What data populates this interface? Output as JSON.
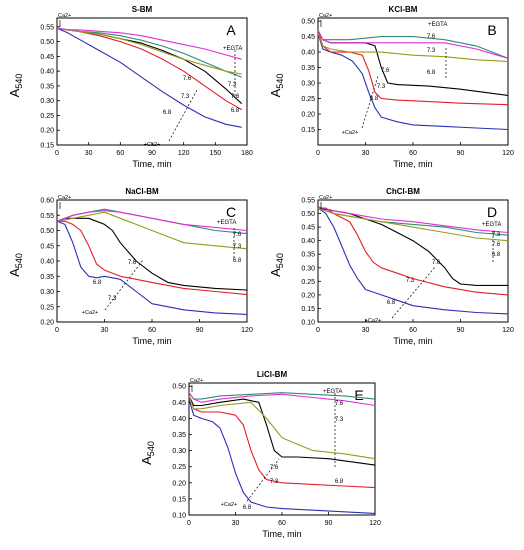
{
  "figure": {
    "colors": {
      "black": "#000000",
      "red": "#e41e26",
      "blue": "#2b2fb8",
      "olive": "#9a9a1e",
      "teal": "#2e8b7a",
      "magenta": "#e22fd6",
      "axis": "#000000"
    }
  },
  "chart_data": [
    {
      "type": "line",
      "panel": "A",
      "title": "S-BM",
      "xlabel": "Time, min",
      "ylabel": "A540",
      "ylabel_base": "A",
      "ylabel_sub": "540",
      "xlim": [
        0,
        180
      ],
      "ylim": [
        0.15,
        0.58
      ],
      "xticks": [
        0,
        30,
        60,
        90,
        120,
        150,
        180
      ],
      "yticks": [
        0.15,
        0.2,
        0.25,
        0.3,
        0.35,
        0.4,
        0.45,
        0.5,
        0.55
      ],
      "annotations": {
        "ca_start": "Ca2+",
        "ca_add": "+Ca2+",
        "egta": "+EGTA",
        "ph_labels": [
          "7.6",
          "7.3",
          "6.8",
          "7.3",
          "7.6",
          "6.8"
        ]
      },
      "series": [
        {
          "color": "blue",
          "x": [
            0,
            10,
            20,
            40,
            60,
            80,
            100,
            120,
            140,
            160,
            175
          ],
          "y": [
            0.545,
            0.53,
            0.51,
            0.47,
            0.43,
            0.38,
            0.33,
            0.285,
            0.245,
            0.22,
            0.21
          ]
        },
        {
          "color": "red",
          "x": [
            0,
            10,
            20,
            40,
            60,
            80,
            100,
            120,
            140,
            160,
            175
          ],
          "y": [
            0.545,
            0.54,
            0.535,
            0.52,
            0.5,
            0.475,
            0.44,
            0.4,
            0.35,
            0.3,
            0.27
          ]
        },
        {
          "color": "black",
          "x": [
            0,
            10,
            20,
            40,
            60,
            80,
            100,
            120,
            140,
            160,
            175
          ],
          "y": [
            0.545,
            0.54,
            0.535,
            0.525,
            0.51,
            0.495,
            0.47,
            0.44,
            0.4,
            0.34,
            0.29
          ]
        },
        {
          "color": "teal",
          "x": [
            0,
            10,
            20,
            40,
            60,
            80,
            100,
            120,
            140,
            160,
            175
          ],
          "y": [
            0.545,
            0.54,
            0.535,
            0.53,
            0.52,
            0.505,
            0.485,
            0.46,
            0.43,
            0.4,
            0.38
          ]
        },
        {
          "color": "olive",
          "x": [
            0,
            10,
            20,
            40,
            60,
            80,
            100,
            120,
            140,
            160,
            175
          ],
          "y": [
            0.545,
            0.54,
            0.535,
            0.525,
            0.51,
            0.49,
            0.465,
            0.44,
            0.42,
            0.4,
            0.39
          ]
        },
        {
          "color": "magenta",
          "x": [
            0,
            10,
            20,
            40,
            60,
            80,
            100,
            120,
            140,
            160,
            175
          ],
          "y": [
            0.545,
            0.54,
            0.54,
            0.535,
            0.53,
            0.52,
            0.505,
            0.49,
            0.475,
            0.455,
            0.44
          ]
        }
      ]
    },
    {
      "type": "line",
      "panel": "B",
      "title": "KCl-BM",
      "xlabel": "Time, min",
      "ylabel": "A540",
      "ylabel_base": "A",
      "ylabel_sub": "540",
      "xlim": [
        0,
        120
      ],
      "ylim": [
        0.1,
        0.51
      ],
      "xticks": [
        0,
        30,
        60,
        90,
        120
      ],
      "yticks": [
        0.15,
        0.2,
        0.25,
        0.3,
        0.35,
        0.4,
        0.45,
        0.5
      ],
      "annotations": {
        "ca_start": "Ca2+",
        "ca_add": "+Ca2+",
        "egta": "+EGTA",
        "ph_labels": [
          "7.6",
          "7.3",
          "6.8",
          "7.6",
          "7.3",
          "6.8"
        ]
      },
      "series": [
        {
          "color": "blue",
          "x": [
            0,
            3,
            8,
            15,
            22,
            28,
            32,
            36,
            40,
            50,
            60,
            80,
            100,
            120
          ],
          "y": [
            0.46,
            0.41,
            0.4,
            0.39,
            0.37,
            0.33,
            0.27,
            0.22,
            0.19,
            0.175,
            0.165,
            0.16,
            0.155,
            0.15
          ]
        },
        {
          "color": "red",
          "x": [
            0,
            3,
            8,
            20,
            28,
            32,
            36,
            40,
            50,
            70,
            90,
            120
          ],
          "y": [
            0.47,
            0.42,
            0.4,
            0.4,
            0.39,
            0.34,
            0.27,
            0.25,
            0.245,
            0.24,
            0.235,
            0.23
          ]
        },
        {
          "color": "black",
          "x": [
            0,
            3,
            8,
            20,
            30,
            36,
            40,
            44,
            50,
            70,
            90,
            120
          ],
          "y": [
            0.47,
            0.44,
            0.43,
            0.43,
            0.43,
            0.42,
            0.35,
            0.3,
            0.295,
            0.29,
            0.28,
            0.26
          ]
        },
        {
          "color": "olive",
          "x": [
            0,
            3,
            8,
            20,
            40,
            60,
            80,
            100,
            120
          ],
          "y": [
            0.46,
            0.42,
            0.41,
            0.4,
            0.4,
            0.39,
            0.385,
            0.375,
            0.37
          ]
        },
        {
          "color": "teal",
          "x": [
            0,
            3,
            8,
            20,
            40,
            60,
            80,
            100,
            120
          ],
          "y": [
            0.47,
            0.44,
            0.44,
            0.44,
            0.45,
            0.45,
            0.44,
            0.42,
            0.38
          ]
        },
        {
          "color": "magenta",
          "x": [
            0,
            3,
            8,
            20,
            40,
            60,
            80,
            100,
            120
          ],
          "y": [
            0.47,
            0.44,
            0.43,
            0.43,
            0.43,
            0.43,
            0.43,
            0.41,
            0.38
          ]
        }
      ]
    },
    {
      "type": "line",
      "panel": "C",
      "title": "NaCl-BM",
      "xlabel": "Time, min",
      "ylabel": "A540",
      "ylabel_base": "A",
      "ylabel_sub": "540",
      "xlim": [
        0,
        120
      ],
      "ylim": [
        0.2,
        0.6
      ],
      "xticks": [
        0,
        30,
        60,
        90,
        120
      ],
      "yticks": [
        0.2,
        0.25,
        0.3,
        0.35,
        0.4,
        0.45,
        0.5,
        0.55,
        0.6
      ],
      "annotations": {
        "ca_start": "Ca2+",
        "ca_add": "+Ca2+",
        "egta": "+EGTA",
        "ph_labels": [
          "6.8",
          "7.3",
          "7.6",
          "7.6",
          "7.3",
          "6.8"
        ]
      },
      "series": [
        {
          "color": "blue",
          "x": [
            0,
            5,
            10,
            15,
            20,
            25,
            30,
            40,
            50,
            60,
            80,
            100,
            120
          ],
          "y": [
            0.53,
            0.52,
            0.46,
            0.38,
            0.35,
            0.345,
            0.35,
            0.34,
            0.3,
            0.26,
            0.24,
            0.23,
            0.225
          ]
        },
        {
          "color": "red",
          "x": [
            0,
            5,
            10,
            15,
            20,
            25,
            30,
            40,
            50,
            60,
            80,
            100,
            120
          ],
          "y": [
            0.53,
            0.53,
            0.52,
            0.5,
            0.45,
            0.39,
            0.37,
            0.35,
            0.34,
            0.33,
            0.31,
            0.3,
            0.29
          ]
        },
        {
          "color": "black",
          "x": [
            0,
            5,
            10,
            20,
            30,
            35,
            40,
            45,
            50,
            60,
            70,
            80,
            100,
            120
          ],
          "y": [
            0.53,
            0.54,
            0.54,
            0.54,
            0.52,
            0.5,
            0.46,
            0.43,
            0.4,
            0.36,
            0.33,
            0.32,
            0.31,
            0.305
          ]
        },
        {
          "color": "olive",
          "x": [
            0,
            10,
            20,
            30,
            40,
            50,
            60,
            70,
            80,
            100,
            120
          ],
          "y": [
            0.53,
            0.54,
            0.55,
            0.56,
            0.54,
            0.52,
            0.5,
            0.48,
            0.46,
            0.45,
            0.44
          ]
        },
        {
          "color": "teal",
          "x": [
            0,
            10,
            20,
            30,
            40,
            60,
            80,
            100,
            120
          ],
          "y": [
            0.53,
            0.55,
            0.56,
            0.57,
            0.56,
            0.54,
            0.52,
            0.5,
            0.49
          ]
        },
        {
          "color": "magenta",
          "x": [
            0,
            10,
            20,
            30,
            40,
            60,
            80,
            100,
            120
          ],
          "y": [
            0.53,
            0.55,
            0.56,
            0.565,
            0.56,
            0.54,
            0.52,
            0.51,
            0.5
          ]
        }
      ]
    },
    {
      "type": "line",
      "panel": "D",
      "title": "ChCl-BM",
      "xlabel": "Time, min",
      "ylabel": "A540",
      "ylabel_base": "A",
      "ylabel_sub": "540",
      "xlim": [
        0,
        120
      ],
      "ylim": [
        0.1,
        0.55
      ],
      "xticks": [
        0,
        30,
        60,
        90,
        120
      ],
      "yticks": [
        0.1,
        0.15,
        0.2,
        0.25,
        0.3,
        0.35,
        0.4,
        0.45,
        0.5,
        0.55
      ],
      "annotations": {
        "ca_start": "Ca2+",
        "ca_add": "+Ca2+",
        "egta": "+EGTA",
        "ph_labels": [
          "7.6",
          "7.3",
          "6.8",
          "7.3",
          "7.6",
          "6.8"
        ]
      },
      "series": [
        {
          "color": "blue",
          "x": [
            0,
            5,
            10,
            15,
            20,
            25,
            30,
            40,
            50,
            60,
            80,
            100,
            120
          ],
          "y": [
            0.52,
            0.5,
            0.45,
            0.38,
            0.31,
            0.26,
            0.22,
            0.2,
            0.18,
            0.16,
            0.145,
            0.135,
            0.13
          ]
        },
        {
          "color": "red",
          "x": [
            0,
            5,
            10,
            20,
            25,
            30,
            35,
            40,
            50,
            60,
            80,
            100,
            120
          ],
          "y": [
            0.52,
            0.52,
            0.5,
            0.47,
            0.42,
            0.36,
            0.32,
            0.3,
            0.28,
            0.26,
            0.23,
            0.21,
            0.2
          ]
        },
        {
          "color": "black",
          "x": [
            0,
            10,
            20,
            30,
            40,
            50,
            60,
            70,
            80,
            85,
            90,
            100,
            120
          ],
          "y": [
            0.52,
            0.51,
            0.5,
            0.48,
            0.46,
            0.43,
            0.4,
            0.36,
            0.3,
            0.26,
            0.24,
            0.235,
            0.235
          ]
        },
        {
          "color": "teal",
          "x": [
            0,
            10,
            20,
            30,
            40,
            60,
            80,
            100,
            120
          ],
          "y": [
            0.52,
            0.5,
            0.49,
            0.48,
            0.47,
            0.46,
            0.45,
            0.43,
            0.42
          ]
        },
        {
          "color": "olive",
          "x": [
            0,
            10,
            20,
            30,
            40,
            60,
            80,
            100,
            120
          ],
          "y": [
            0.52,
            0.5,
            0.49,
            0.48,
            0.47,
            0.45,
            0.43,
            0.41,
            0.4
          ]
        },
        {
          "color": "magenta",
          "x": [
            0,
            10,
            20,
            30,
            40,
            60,
            80,
            100,
            120
          ],
          "y": [
            0.525,
            0.51,
            0.5,
            0.49,
            0.48,
            0.47,
            0.455,
            0.44,
            0.43
          ]
        }
      ]
    },
    {
      "type": "line",
      "panel": "E",
      "title": "LiCl-BM",
      "xlabel": "Time, min",
      "ylabel": "A540",
      "ylabel_base": "A",
      "ylabel_sub": "540",
      "xlim": [
        0,
        120
      ],
      "ylim": [
        0.1,
        0.51
      ],
      "xticks": [
        0,
        30,
        60,
        90,
        120
      ],
      "yticks": [
        0.1,
        0.15,
        0.2,
        0.25,
        0.3,
        0.35,
        0.4,
        0.45,
        0.5
      ],
      "annotations": {
        "ca_start": "Ca2+",
        "ca_add": "+Ca2+",
        "egta": "+EGTA",
        "ph_labels": [
          "7.6",
          "7.3",
          "6.8",
          "7.6",
          "7.3",
          "6.8"
        ]
      },
      "series": [
        {
          "color": "blue",
          "x": [
            0,
            3,
            8,
            15,
            20,
            25,
            30,
            35,
            40,
            50,
            60,
            80,
            100,
            120
          ],
          "y": [
            0.46,
            0.41,
            0.4,
            0.39,
            0.37,
            0.31,
            0.23,
            0.17,
            0.14,
            0.125,
            0.12,
            0.115,
            0.11,
            0.105
          ]
        },
        {
          "color": "red",
          "x": [
            0,
            3,
            8,
            20,
            30,
            35,
            40,
            45,
            50,
            60,
            80,
            100,
            120
          ],
          "y": [
            0.47,
            0.43,
            0.42,
            0.42,
            0.41,
            0.38,
            0.3,
            0.24,
            0.21,
            0.2,
            0.195,
            0.19,
            0.185
          ]
        },
        {
          "color": "black",
          "x": [
            0,
            3,
            8,
            20,
            35,
            45,
            50,
            55,
            60,
            70,
            90,
            120
          ],
          "y": [
            0.47,
            0.44,
            0.44,
            0.45,
            0.46,
            0.45,
            0.38,
            0.3,
            0.28,
            0.28,
            0.275,
            0.255
          ]
        },
        {
          "color": "olive",
          "x": [
            0,
            3,
            8,
            20,
            40,
            50,
            60,
            70,
            80,
            100,
            120
          ],
          "y": [
            0.47,
            0.43,
            0.43,
            0.44,
            0.45,
            0.4,
            0.34,
            0.32,
            0.3,
            0.29,
            0.275
          ]
        },
        {
          "color": "teal",
          "x": [
            0,
            3,
            8,
            20,
            40,
            60,
            80,
            100,
            120
          ],
          "y": [
            0.48,
            0.46,
            0.46,
            0.47,
            0.475,
            0.48,
            0.475,
            0.47,
            0.46
          ]
        },
        {
          "color": "magenta",
          "x": [
            0,
            3,
            8,
            20,
            40,
            60,
            80,
            100,
            120
          ],
          "y": [
            0.48,
            0.46,
            0.45,
            0.46,
            0.47,
            0.475,
            0.465,
            0.455,
            0.44
          ]
        }
      ]
    }
  ]
}
